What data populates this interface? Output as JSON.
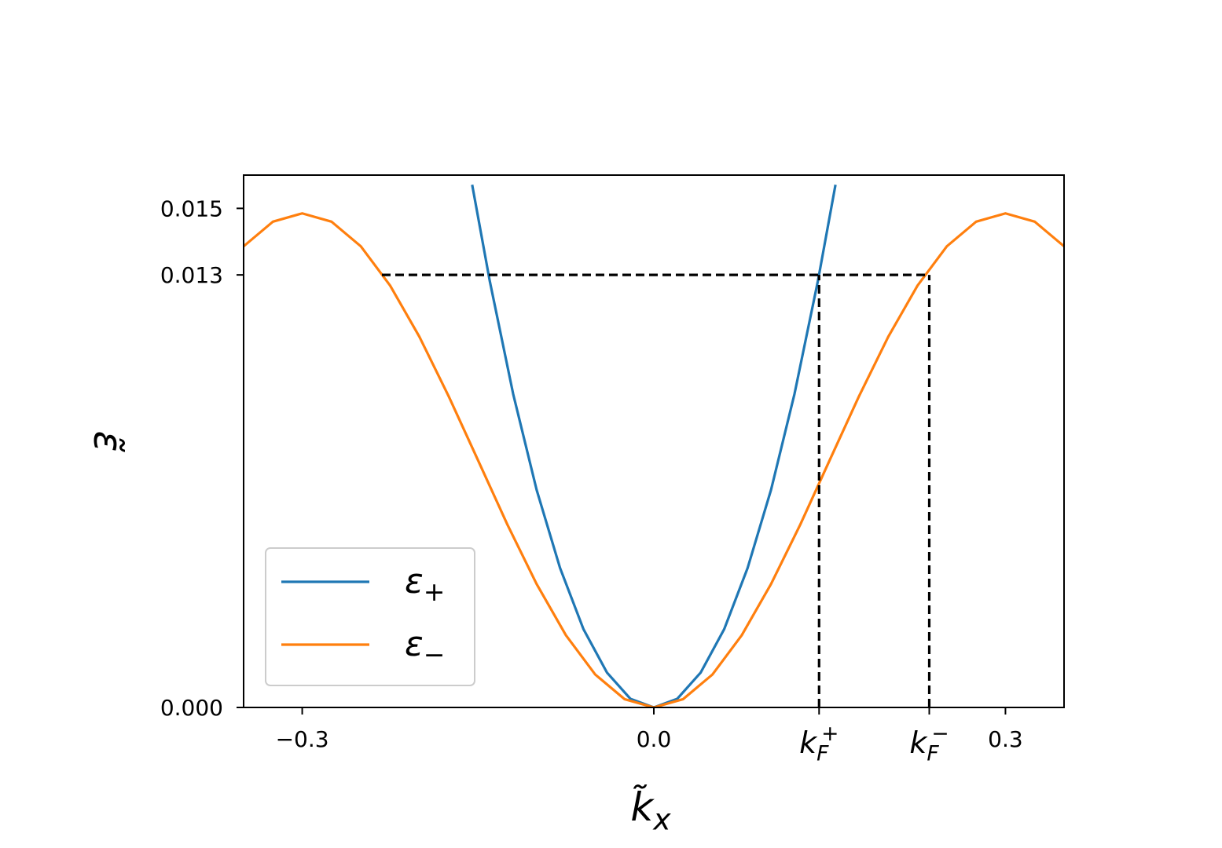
{
  "chart_data": {
    "type": "line",
    "x_label": "k̃x",
    "y_label": "ε̃",
    "xlim": [
      -0.35,
      0.35
    ],
    "ylim": [
      0,
      0.016
    ],
    "xticks": [
      {
        "value": -0.3,
        "label": "−0.3"
      },
      {
        "value": 0.0,
        "label": "0.0"
      },
      {
        "value": 0.141,
        "label": "kF+"
      },
      {
        "value": 0.235,
        "label": "kF−"
      },
      0.3
    ],
    "yticks": [
      {
        "value": 0,
        "label": "0.000"
      },
      0.013,
      0.015
    ],
    "grid": false,
    "legend": "lower left",
    "series": [
      {
        "name": "ε+",
        "color": "#1f77b4",
        "x": [
          -0.155,
          -0.14,
          -0.12,
          -0.1,
          -0.08,
          -0.06,
          -0.04,
          -0.02,
          0,
          0.02,
          0.04,
          0.06,
          0.08,
          0.1,
          0.12,
          0.14,
          0.155
        ],
        "values": [
          0.01571,
          0.01282,
          0.00942,
          0.00654,
          0.00419,
          0.00235,
          0.00105,
          0.00026,
          0,
          0.00026,
          0.00105,
          0.00235,
          0.00419,
          0.00654,
          0.00942,
          0.01282,
          0.01571
        ]
      },
      {
        "name": "ε−",
        "color": "#ff7f0e",
        "x": [
          -0.35,
          -0.325,
          -0.3,
          -0.275,
          -0.25,
          -0.225,
          -0.2,
          -0.175,
          -0.15,
          -0.125,
          -0.1,
          -0.075,
          -0.05,
          -0.025,
          0,
          0.025,
          0.05,
          0.075,
          0.1,
          0.125,
          0.15,
          0.175,
          0.2,
          0.225,
          0.25,
          0.275,
          0.3,
          0.325,
          0.35
        ],
        "values": [
          0.01386,
          0.0146,
          0.01485,
          0.0146,
          0.01386,
          0.01268,
          0.01114,
          0.00935,
          0.00743,
          0.0055,
          0.00371,
          0.00217,
          0.00099,
          0.00025,
          0,
          0.00025,
          0.00099,
          0.00217,
          0.00371,
          0.0055,
          0.00743,
          0.00935,
          0.01114,
          0.01268,
          0.01386,
          0.0146,
          0.01485,
          0.0146,
          0.01386
        ]
      }
    ],
    "reference_lines": [
      {
        "x": [
          -0.232,
          0.235
        ],
        "y": [
          0.013,
          0.013
        ]
      },
      {
        "x": [
          0.141,
          0.141
        ],
        "y": [
          0,
          0.013
        ]
      },
      {
        "x": [
          0.235,
          0.235
        ],
        "y": [
          0,
          0.013
        ]
      }
    ]
  }
}
